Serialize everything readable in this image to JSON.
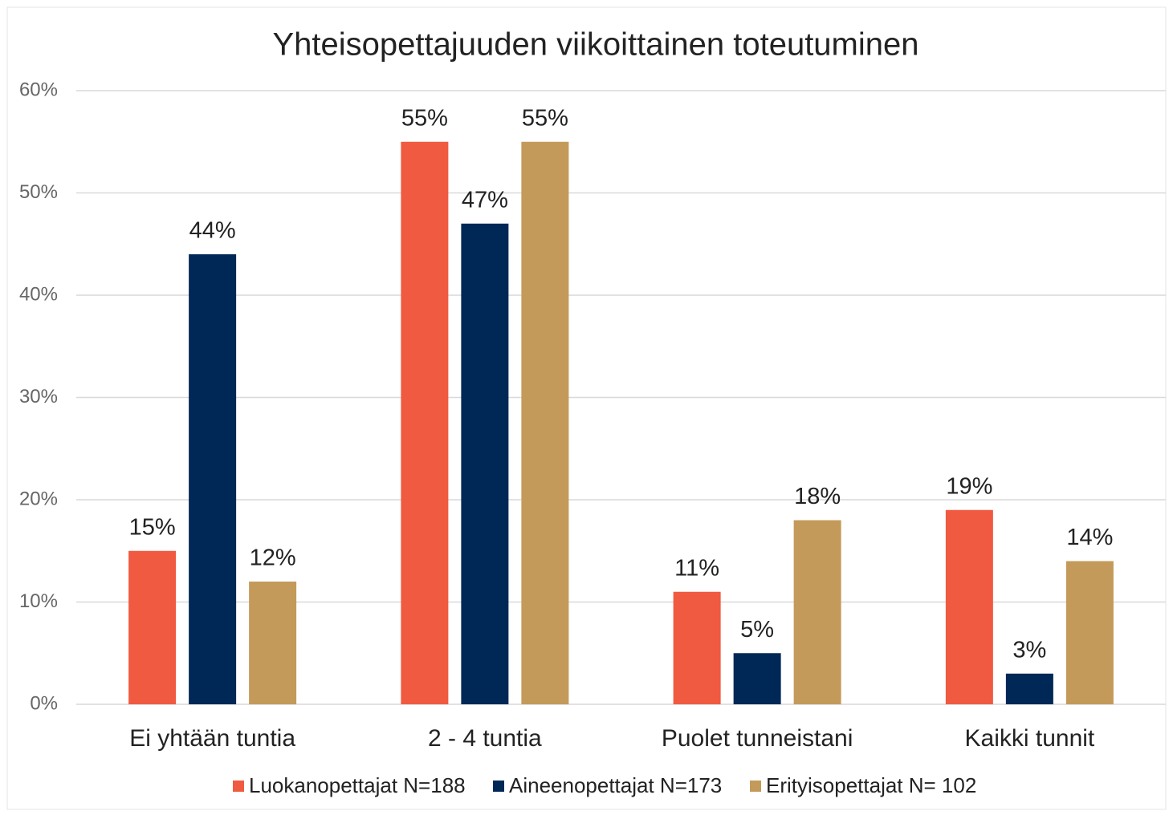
{
  "chart_data": {
    "type": "bar",
    "title": "Yhteisopettajuuden viikoittainen toteutuminen",
    "categories": [
      "Ei yhtään tuntia",
      "2 - 4 tuntia",
      "Puolet tunneistani",
      "Kaikki tunnit"
    ],
    "series": [
      {
        "name": "Luokanopettajat N=188",
        "color": "#f05a40",
        "values": [
          15,
          55,
          11,
          19
        ],
        "value_labels": [
          "15%",
          "55%",
          "11%",
          "19%"
        ]
      },
      {
        "name": "Aineenopettajat N=173",
        "color": "#002856",
        "values": [
          44,
          47,
          5,
          3
        ],
        "value_labels": [
          "44%",
          "47%",
          "5%",
          "3%"
        ]
      },
      {
        "name": "Erityisopettajat N= 102",
        "color": "#c49a5a",
        "values": [
          12,
          55,
          18,
          14
        ],
        "value_labels": [
          "12%",
          "55%",
          "18%",
          "14%"
        ]
      }
    ],
    "ylim": [
      0,
      60
    ],
    "yticks": [
      {
        "value": 0,
        "label": "0%"
      },
      {
        "value": 10,
        "label": "10%"
      },
      {
        "value": 20,
        "label": "20%"
      },
      {
        "value": 30,
        "label": "30%"
      },
      {
        "value": 40,
        "label": "40%"
      },
      {
        "value": 50,
        "label": "50%"
      },
      {
        "value": 60,
        "label": "60%"
      }
    ],
    "grid": true,
    "legend": "bottom"
  }
}
